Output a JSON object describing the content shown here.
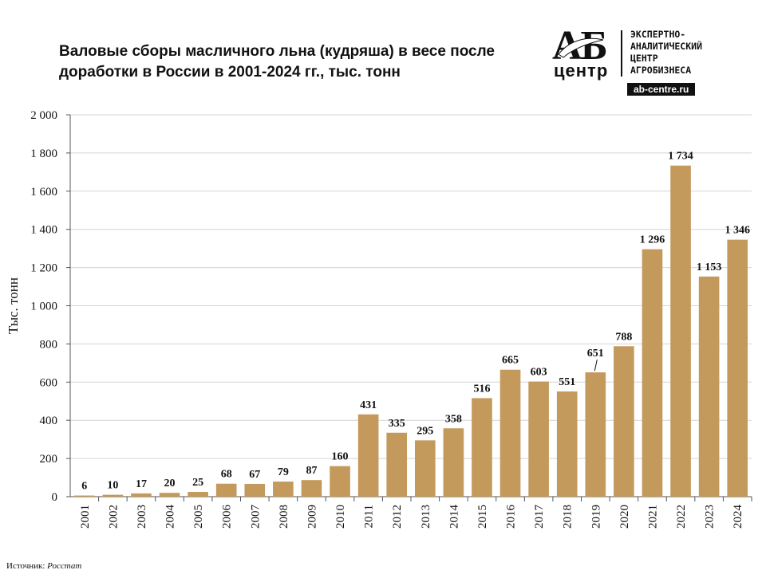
{
  "title": "Валовые сборы масличного льна (кудряша) в весе после доработки в России в 2001-2024 гг., тыс. тонн",
  "logo": {
    "mark_top": "АБ",
    "mark_bottom": "центр",
    "org_name": "ЭКСПЕРТНО-\nАНАЛИТИЧЕСКИЙ\nЦЕНТР\nАГРОБИЗНЕСА",
    "site": "ab-centre.ru"
  },
  "source": {
    "label": "Источник:",
    "value": "Росстат"
  },
  "colors": {
    "bar": "#C49A5C",
    "grid": "#d4d4d4",
    "axis": "#555555",
    "text": "#111111"
  },
  "chart_data": {
    "type": "bar",
    "title": "Валовые сборы масличного льна (кудряша) в весе после доработки в России в 2001-2024 гг., тыс. тонн",
    "xlabel": "",
    "ylabel": "Тыс. тонн",
    "categories": [
      "2001",
      "2002",
      "2003",
      "2004",
      "2005",
      "2006",
      "2007",
      "2008",
      "2009",
      "2010",
      "2011",
      "2012",
      "2013",
      "2014",
      "2015",
      "2016",
      "2017",
      "2018",
      "2019",
      "2020",
      "2021",
      "2022",
      "2023",
      "2024"
    ],
    "values": [
      6,
      10,
      17,
      20,
      25,
      68,
      67,
      79,
      87,
      160,
      431,
      335,
      295,
      358,
      516,
      665,
      603,
      551,
      651,
      788,
      1296,
      1734,
      1153,
      1346
    ],
    "value_labels": [
      "6",
      "10",
      "17",
      "20",
      "25",
      "68",
      "67",
      "79",
      "87",
      "160",
      "431",
      "335",
      "295",
      "358",
      "516",
      "665",
      "603",
      "551",
      "651",
      "788",
      "1 296",
      "1 734",
      "1 153",
      "1 346"
    ],
    "ylim": [
      0,
      2000
    ],
    "yticks": [
      0,
      200,
      400,
      600,
      800,
      1000,
      1200,
      1400,
      1600,
      1800,
      2000
    ],
    "ytick_labels": [
      "0",
      "200",
      "400",
      "600",
      "800",
      "1 000",
      "1 200",
      "1 400",
      "1 600",
      "1 800",
      "2 000"
    ],
    "grid": true,
    "legend": "none"
  }
}
